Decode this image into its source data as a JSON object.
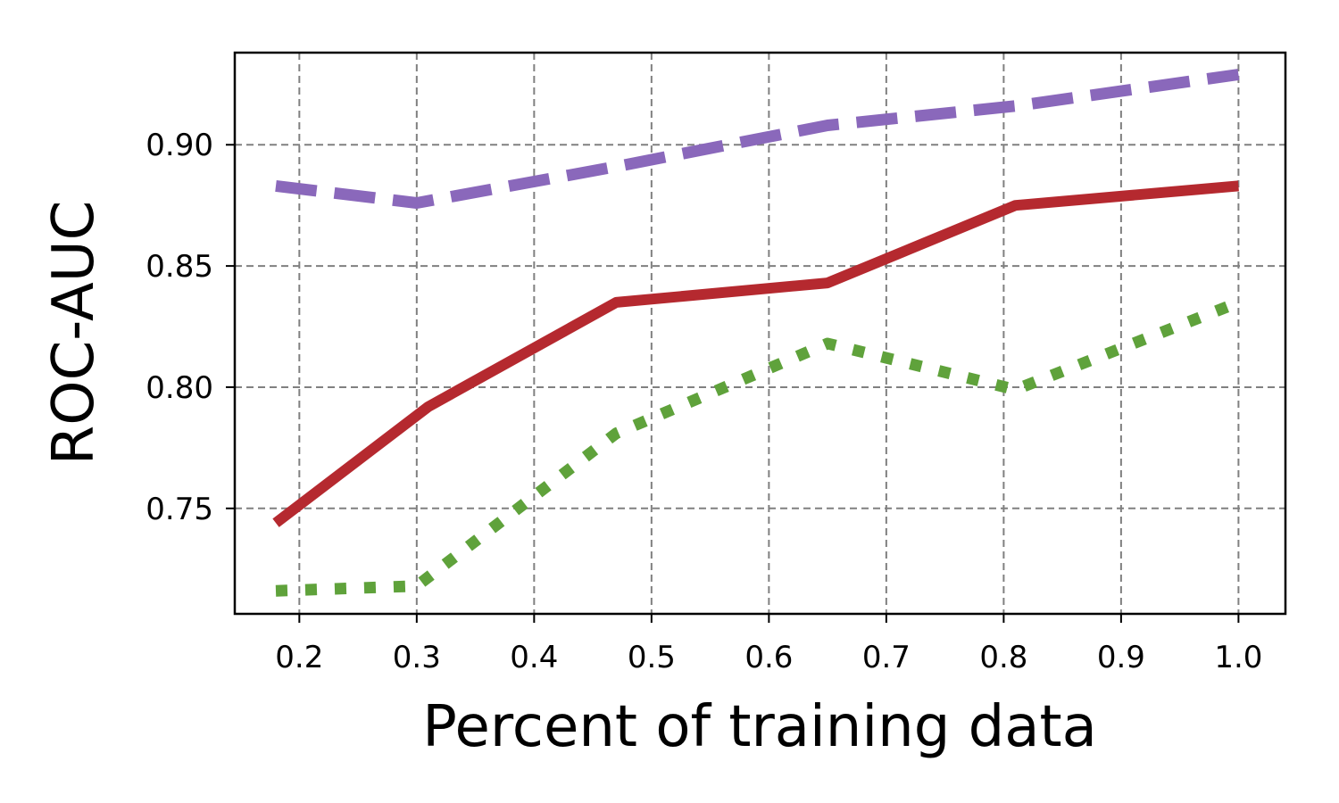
{
  "chart_data": {
    "type": "line",
    "title": "",
    "xlabel": "Percent of training data",
    "ylabel": "ROC-AUC",
    "xlim": [
      0.145,
      1.04
    ],
    "ylim": [
      0.7065,
      0.938
    ],
    "xticks": [
      0.2,
      0.3,
      0.4,
      0.5,
      0.6,
      0.7,
      0.8,
      0.9,
      1.0
    ],
    "xtick_labels": [
      "0.2",
      "0.3",
      "0.4",
      "0.5",
      "0.6",
      "0.7",
      "0.8",
      "0.9",
      "1.0"
    ],
    "yticks": [
      0.75,
      0.8,
      0.85,
      0.9
    ],
    "ytick_labels": [
      "0.75",
      "0.80",
      "0.85",
      "0.90"
    ],
    "grid": true,
    "legend": null,
    "series": [
      {
        "style": "dashed",
        "color": "#8a68bb",
        "x": [
          0.18,
          0.3,
          0.47,
          0.65,
          0.81,
          1.0
        ],
        "y": [
          0.883,
          0.876,
          0.891,
          0.908,
          0.916,
          0.929
        ]
      },
      {
        "style": "solid",
        "color": "#b5292f",
        "x": [
          0.18,
          0.31,
          0.47,
          0.65,
          0.81,
          1.0
        ],
        "y": [
          0.744,
          0.792,
          0.835,
          0.843,
          0.875,
          0.883
        ]
      },
      {
        "style": "dotted",
        "color": "#5fa23b",
        "x": [
          0.18,
          0.3,
          0.47,
          0.65,
          0.81,
          1.0
        ],
        "y": [
          0.716,
          0.718,
          0.781,
          0.818,
          0.799,
          0.835
        ]
      }
    ]
  }
}
